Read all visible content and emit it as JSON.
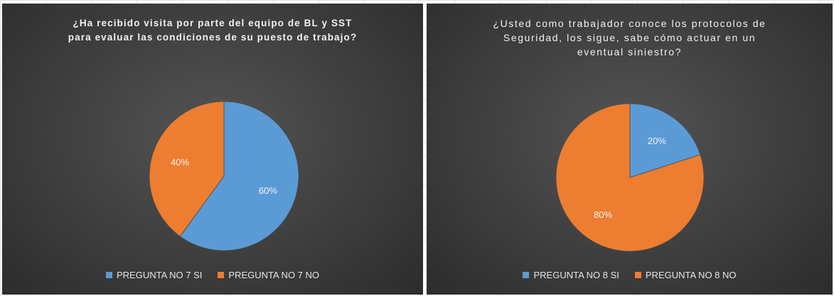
{
  "colors": {
    "si": "#5b9bd5",
    "no": "#ed7d31"
  },
  "chart_data": [
    {
      "type": "pie",
      "title": "¿Ha recibido visita por parte del equipo de BL y SST\npara evaluar las condiciones de su puesto de trabajo?",
      "categories": [
        "PREGUNTA NO 7 SI",
        "PREGUNTA NO 7 NO"
      ],
      "values": [
        60,
        40
      ],
      "labels": [
        "60%",
        "40%"
      ],
      "legend": "bottom"
    },
    {
      "type": "pie",
      "title": "¿Usted como trabajador conoce los protocolos de\nSeguridad, los sigue, sabe cómo actuar en un\neventual siniestro?",
      "categories": [
        "PREGUNTA NO 8 SI",
        "PREGUNTA NO 8 NO"
      ],
      "values": [
        20,
        80
      ],
      "labels": [
        "20%",
        "80%"
      ],
      "legend": "bottom"
    }
  ]
}
